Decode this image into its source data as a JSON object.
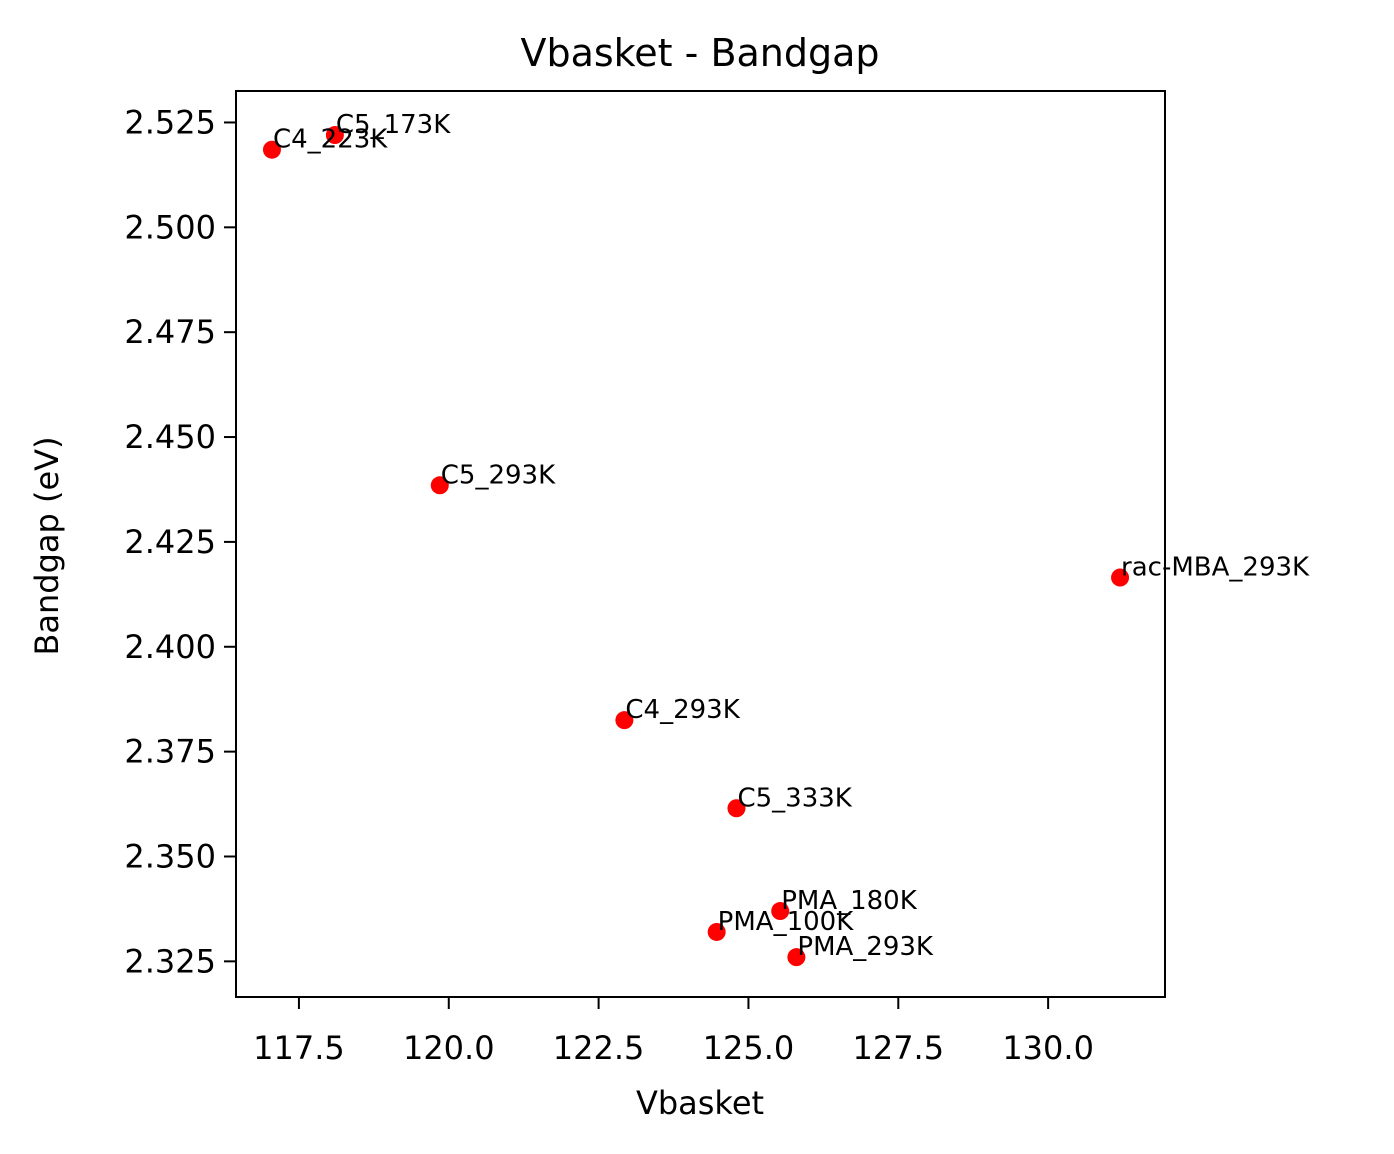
{
  "chart_data": {
    "type": "scatter",
    "title": "Vbasket - Bandgap",
    "xlabel": "Vbasket",
    "ylabel": "Bandgap (eV)",
    "xlim": [
      116.45,
      131.95
    ],
    "ylim": [
      2.3165,
      2.5325
    ],
    "xticks": [
      117.5,
      120.0,
      122.5,
      125.0,
      127.5,
      130.0
    ],
    "xtick_labels": [
      "117.5",
      "120.0",
      "122.5",
      "125.0",
      "127.5",
      "130.0"
    ],
    "yticks": [
      2.325,
      2.35,
      2.375,
      2.4,
      2.425,
      2.45,
      2.475,
      2.5,
      2.525
    ],
    "ytick_labels": [
      "2.325",
      "2.350",
      "2.375",
      "2.400",
      "2.425",
      "2.450",
      "2.475",
      "2.500",
      "2.525"
    ],
    "grid": false,
    "marker_color": "#ff0000",
    "points": [
      {
        "label": "C5_173K",
        "x": 118.1,
        "y": 2.522
      },
      {
        "label": "C4_223K",
        "x": 117.05,
        "y": 2.5185
      },
      {
        "label": "C5_293K",
        "x": 119.85,
        "y": 2.4385
      },
      {
        "label": "rac-MBA_293K",
        "x": 131.2,
        "y": 2.4165
      },
      {
        "label": "C4_293K",
        "x": 122.93,
        "y": 2.3825
      },
      {
        "label": "C5_333K",
        "x": 124.8,
        "y": 2.3615
      },
      {
        "label": "PMA_180K",
        "x": 125.53,
        "y": 2.337
      },
      {
        "label": "PMA_100K",
        "x": 124.47,
        "y": 2.332
      },
      {
        "label": "PMA_293K",
        "x": 125.8,
        "y": 2.326
      }
    ]
  }
}
